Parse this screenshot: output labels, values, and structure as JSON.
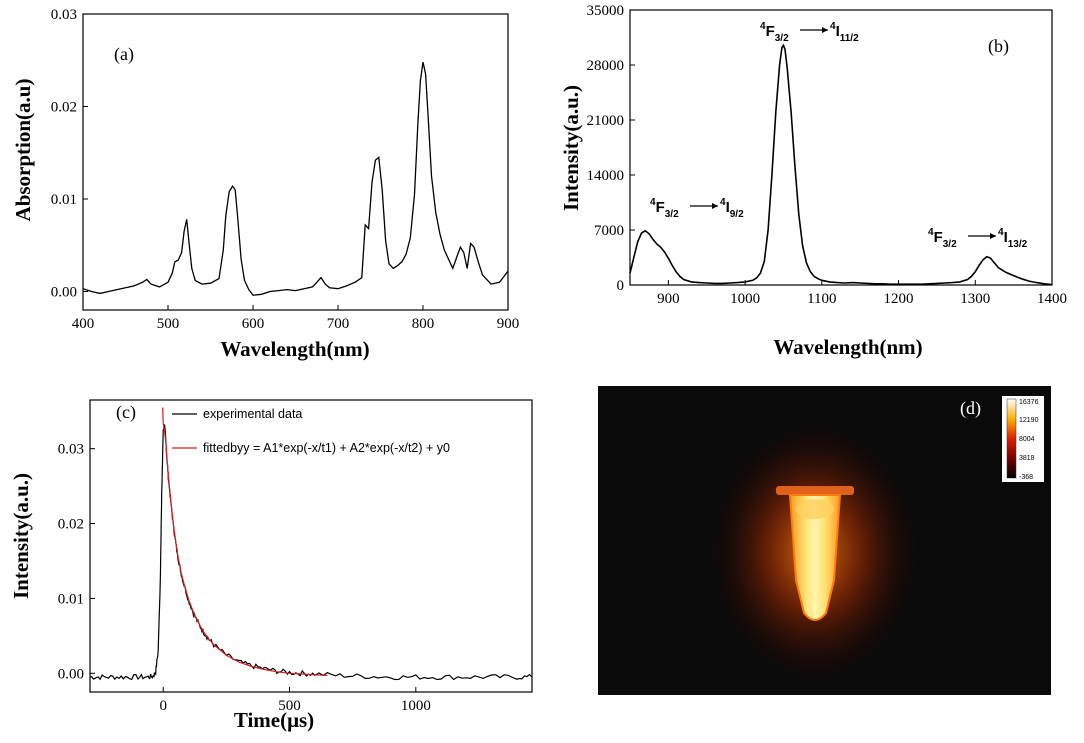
{
  "chart_data": [
    {
      "id": "a",
      "panel_label": "(a)",
      "type": "line",
      "xlabel": "Wavelength(nm)",
      "ylabel": "Absorption(a.u)",
      "xlim": [
        400,
        900
      ],
      "ylim": [
        -0.002,
        0.03
      ],
      "xticks": [
        400,
        500,
        600,
        700,
        800,
        900
      ],
      "xtick_labels": [
        "400",
        "500",
        "600",
        "700",
        "800",
        "900"
      ],
      "yticks": [
        0,
        0.01,
        0.02,
        0.03
      ],
      "ytick_labels": [
        "0.00",
        "0.01",
        "0.02",
        "0.03"
      ],
      "color": "#000000",
      "x": [
        400,
        410,
        420,
        430,
        440,
        450,
        460,
        470,
        475,
        480,
        490,
        500,
        505,
        508,
        512,
        516,
        519,
        522,
        525,
        528,
        532,
        540,
        550,
        560,
        565,
        568,
        572,
        576,
        579,
        582,
        586,
        590,
        595,
        600,
        610,
        620,
        630,
        640,
        650,
        660,
        670,
        675,
        680,
        685,
        690,
        700,
        710,
        720,
        728,
        732,
        736,
        740,
        744,
        748,
        752,
        756,
        760,
        765,
        770,
        775,
        780,
        785,
        790,
        794,
        797,
        800,
        803,
        806,
        810,
        815,
        820,
        825,
        830,
        835,
        840,
        844,
        848,
        852,
        856,
        860,
        865,
        870,
        880,
        890,
        900
      ],
      "y": [
        0.0003,
        0.0,
        -0.0002,
        0.0,
        0.0002,
        0.0004,
        0.0006,
        0.001,
        0.0013,
        0.0008,
        0.0005,
        0.001,
        0.002,
        0.0032,
        0.0034,
        0.0042,
        0.0065,
        0.0078,
        0.005,
        0.0025,
        0.0012,
        0.0008,
        0.0009,
        0.0014,
        0.0045,
        0.0082,
        0.0108,
        0.0114,
        0.011,
        0.008,
        0.0035,
        0.0012,
        0.0002,
        -0.0004,
        -0.0003,
        0.0,
        0.0001,
        0.0002,
        0.0001,
        0.0003,
        0.0005,
        0.001,
        0.0015,
        0.0008,
        0.0004,
        0.0003,
        0.0006,
        0.001,
        0.0015,
        0.0072,
        0.0068,
        0.0118,
        0.0142,
        0.0145,
        0.011,
        0.0055,
        0.003,
        0.0025,
        0.0028,
        0.0032,
        0.004,
        0.0058,
        0.0105,
        0.0182,
        0.0228,
        0.0248,
        0.0235,
        0.019,
        0.0125,
        0.0085,
        0.0062,
        0.0045,
        0.0035,
        0.0025,
        0.0038,
        0.0048,
        0.0042,
        0.0025,
        0.0052,
        0.0048,
        0.0032,
        0.0018,
        0.0008,
        0.001,
        0.0022
      ]
    },
    {
      "id": "b",
      "panel_label": "(b)",
      "type": "line",
      "xlabel": "Wavelength(nm)",
      "ylabel": "Intensity(a.u.)",
      "xlim": [
        850,
        1400
      ],
      "ylim": [
        0,
        35000
      ],
      "xticks": [
        900,
        1000,
        1100,
        1200,
        1300,
        1400
      ],
      "xtick_labels": [
        "900",
        "1000",
        "1100",
        "1200",
        "1300",
        "1400"
      ],
      "yticks": [
        0,
        7000,
        14000,
        21000,
        28000,
        35000
      ],
      "ytick_labels": [
        "0",
        "7000",
        "14000",
        "21000",
        "28000",
        "35000"
      ],
      "color": "#000000",
      "x": [
        850,
        855,
        860,
        865,
        870,
        875,
        880,
        885,
        890,
        895,
        900,
        905,
        910,
        915,
        920,
        930,
        940,
        950,
        960,
        970,
        980,
        990,
        1000,
        1010,
        1015,
        1020,
        1025,
        1030,
        1035,
        1040,
        1045,
        1048,
        1050,
        1052,
        1055,
        1060,
        1065,
        1070,
        1075,
        1080,
        1085,
        1090,
        1095,
        1100,
        1110,
        1120,
        1130,
        1140,
        1150,
        1160,
        1170,
        1180,
        1190,
        1200,
        1210,
        1220,
        1230,
        1240,
        1250,
        1260,
        1270,
        1280,
        1290,
        1295,
        1300,
        1305,
        1310,
        1315,
        1320,
        1325,
        1330,
        1340,
        1350,
        1360,
        1370,
        1380,
        1390,
        1400
      ],
      "y": [
        1500,
        3500,
        5500,
        6600,
        6900,
        6500,
        5800,
        5200,
        4800,
        4200,
        3400,
        2500,
        1700,
        1100,
        700,
        400,
        300,
        250,
        200,
        200,
        250,
        300,
        400,
        600,
        900,
        1500,
        3000,
        7000,
        14000,
        22000,
        28000,
        30200,
        30500,
        30000,
        27500,
        22000,
        15000,
        9000,
        5000,
        2800,
        1700,
        1100,
        800,
        600,
        400,
        300,
        250,
        300,
        250,
        200,
        150,
        150,
        100,
        100,
        100,
        100,
        100,
        150,
        200,
        250,
        300,
        400,
        700,
        1100,
        1700,
        2500,
        3200,
        3600,
        3400,
        2800,
        2200,
        1600,
        1200,
        800,
        500,
        300,
        150,
        50
      ]
    },
    {
      "id": "c",
      "panel_label": "(c)",
      "type": "line",
      "xlabel": "Time(μs)",
      "ylabel": "Intensity(a.u.)",
      "xlim": [
        -290,
        1460
      ],
      "ylim": [
        -0.0025,
        0.0365
      ],
      "xticks": [
        0,
        500,
        1000
      ],
      "xtick_labels": [
        "0",
        "500",
        "1000"
      ],
      "yticks": [
        0,
        0.01,
        0.02,
        0.03
      ],
      "ytick_labels": [
        "0.00",
        "0.01",
        "0.02",
        "0.03"
      ],
      "legend": [
        "experimental data",
        "fittedbyy = A1*exp(-x/t1) + A2*exp(-x/t2) + y0"
      ],
      "series": [
        {
          "name": "experimental data",
          "color": "#000000",
          "x": [
            -290,
            -250,
            -200,
            -150,
            -100,
            -60,
            -40,
            -30,
            -20,
            -12,
            -6,
            0,
            5,
            10,
            15,
            20,
            30,
            40,
            50,
            60,
            70,
            80,
            100,
            120,
            140,
            160,
            180,
            200,
            250,
            300,
            350,
            400,
            450,
            500,
            550,
            600,
            700,
            800,
            900,
            1000,
            1100,
            1200,
            1300,
            1400,
            1460
          ],
          "y": [
            -0.0005,
            -0.0005,
            -0.0005,
            -0.0005,
            -0.0005,
            -0.0005,
            -0.0004,
            0.0002,
            0.003,
            0.012,
            0.024,
            0.0325,
            0.0333,
            0.031,
            0.0285,
            0.0262,
            0.0228,
            0.0198,
            0.0172,
            0.0152,
            0.0135,
            0.0121,
            0.0098,
            0.008,
            0.0066,
            0.0055,
            0.0046,
            0.0038,
            0.0024,
            0.0015,
            0.001,
            0.0006,
            0.0003,
            0.0001,
            0.0,
            -0.0001,
            -0.0003,
            -0.0004,
            -0.0005,
            -0.0005,
            -0.0005,
            -0.0005,
            -0.0005,
            -0.0005,
            -0.0005
          ]
        },
        {
          "name": "fittedbyy = A1*exp(-x/t1) + A2*exp(-x/t2) + y0",
          "color": "#d62020",
          "x": [
            -2,
            0,
            5,
            10,
            15,
            20,
            30,
            40,
            50,
            60,
            70,
            80,
            100,
            120,
            140,
            160,
            180,
            200,
            250,
            300,
            350,
            400,
            450,
            500,
            550,
            600,
            650
          ],
          "y": [
            0.0355,
            0.0334,
            0.0324,
            0.0308,
            0.0287,
            0.0265,
            0.023,
            0.02,
            0.0174,
            0.0153,
            0.0136,
            0.0122,
            0.0099,
            0.0081,
            0.0067,
            0.0055,
            0.0046,
            0.0038,
            0.0024,
            0.0015,
            0.0009,
            0.0005,
            0.0002,
            0.0,
            -0.0001,
            -0.0002,
            -0.0003
          ]
        }
      ]
    }
  ],
  "annotations_b": [
    {
      "main": "F",
      "pre": "4",
      "sub": "3/2",
      "target_pre": "4",
      "target": "I",
      "target_sub": "9/2"
    },
    {
      "main": "F",
      "pre": "4",
      "sub": "3/2",
      "target_pre": "4",
      "target": "I",
      "target_sub": "11/2"
    },
    {
      "main": "F",
      "pre": "4",
      "sub": "3/2",
      "target_pre": "4",
      "target": "I",
      "target_sub": "13/2"
    }
  ],
  "panel_d": {
    "panel_label": "(d)",
    "colorbar_ticks": [
      "16376",
      "12190",
      "8004",
      "3818",
      "-368"
    ],
    "colors": {
      "background": "#0a0a0a",
      "glow": "#ff7a00",
      "core": "#fff6a8"
    }
  }
}
